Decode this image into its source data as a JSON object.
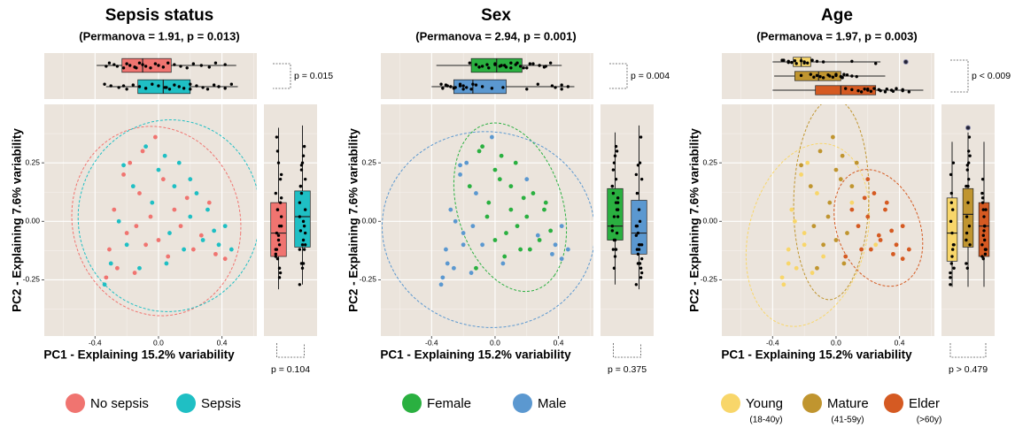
{
  "chart_data": [
    {
      "type": "scatter",
      "title": "Sepsis status",
      "subtitle": "(Permanova = 1.91, p = 0.013)",
      "xlabel": "PC1 - Explaining 15.2% variability",
      "ylabel": "PC2 - Explaining 7.6% variability",
      "xlim": [
        -0.72,
        0.62
      ],
      "ylim": [
        -0.49,
        0.5
      ],
      "xticks": [
        -0.4,
        {
          "value": 0,
          "label": "0.0"
        },
        0.4
      ],
      "yticks": [
        0.25,
        {
          "value": 0,
          "label": "0.00"
        },
        -0.25
      ],
      "pc1_test": "p = 0.015",
      "pc2_test": "p = 0.104",
      "series": [
        {
          "name": "No sepsis",
          "color": "#f07470",
          "x": [
            -0.31,
            -0.28,
            -0.26,
            -0.22,
            -0.2,
            -0.18,
            -0.15,
            -0.12,
            -0.1,
            -0.08,
            -0.05,
            -0.02,
            0.0,
            0.03,
            0.06,
            0.1,
            0.14,
            0.18,
            0.22,
            0.27,
            0.32,
            0.36,
            0.42,
            -0.33,
            -0.14
          ],
          "y": [
            -0.12,
            0.05,
            -0.2,
            0.2,
            -0.05,
            0.25,
            -0.22,
            0.12,
            0.3,
            -0.1,
            0.02,
            0.36,
            -0.08,
            0.18,
            -0.15,
            0.05,
            -0.02,
            0.1,
            -0.12,
            -0.06,
            0.08,
            -0.14,
            -0.16,
            -0.24,
            -0.02
          ],
          "pc1_box": [
            -0.39,
            -0.23,
            -0.1,
            0.08,
            0.49
          ],
          "pc2_box": [
            -0.29,
            -0.15,
            -0.05,
            0.08,
            0.4
          ]
        },
        {
          "name": "Sepsis",
          "color": "#1fbfc4",
          "x": [
            -0.34,
            -0.3,
            -0.25,
            -0.2,
            -0.16,
            -0.12,
            -0.08,
            -0.04,
            0.0,
            0.04,
            0.07,
            0.1,
            0.13,
            0.16,
            0.2,
            0.24,
            0.28,
            0.31,
            0.35,
            0.38,
            0.42,
            0.46,
            -0.22,
            0.05,
            0.2
          ],
          "y": [
            -0.27,
            -0.18,
            0.0,
            -0.1,
            0.15,
            -0.2,
            0.32,
            0.08,
            0.22,
            0.28,
            -0.05,
            0.15,
            0.25,
            -0.12,
            0.02,
            0.12,
            -0.08,
            0.05,
            -0.04,
            -0.1,
            -0.02,
            -0.12,
            0.24,
            -0.18,
            0.18
          ],
          "pc1_box": [
            -0.33,
            -0.13,
            0.03,
            0.2,
            0.5
          ],
          "pc2_box": [
            -0.27,
            -0.11,
            0.02,
            0.13,
            0.41
          ]
        }
      ]
    },
    {
      "type": "scatter",
      "title": "Sex",
      "subtitle": "(Permanova = 2.94, p = 0.001)",
      "xlabel": "PC1 - Explaining 15.2% variability",
      "ylabel": "PC2 - Explaining 7.6% variability",
      "xlim": [
        -0.72,
        0.62
      ],
      "ylim": [
        -0.49,
        0.5
      ],
      "xticks": [
        -0.4,
        {
          "value": 0,
          "label": "0.0"
        },
        0.4
      ],
      "yticks": [
        0.25,
        {
          "value": 0,
          "label": "0.00"
        },
        -0.25
      ],
      "pc1_test": "p = 0.004",
      "pc2_test": "p = 0.375",
      "series": [
        {
          "name": "Female",
          "color": "#2ab040",
          "x": [
            -0.16,
            -0.12,
            -0.08,
            -0.04,
            0.0,
            0.04,
            0.07,
            0.1,
            0.13,
            0.16,
            0.2,
            0.24,
            0.28,
            0.31,
            0.35,
            -0.05,
            0.03,
            0.18,
            0.22,
            0.06,
            -0.1,
            0.14,
            0.0,
            0.32,
            0.1
          ],
          "y": [
            0.15,
            -0.2,
            0.32,
            0.08,
            0.22,
            0.28,
            -0.05,
            0.15,
            0.25,
            -0.12,
            0.02,
            0.12,
            -0.08,
            0.05,
            -0.04,
            0.02,
            0.18,
            0.1,
            -0.12,
            -0.15,
            0.3,
            -0.02,
            -0.08,
            0.08,
            0.05
          ],
          "pc1_box": [
            -0.37,
            -0.15,
            0.01,
            0.17,
            0.42
          ],
          "pc2_box": [
            -0.27,
            -0.08,
            -0.02,
            0.14,
            0.38
          ]
        },
        {
          "name": "Male",
          "color": "#5b98d0",
          "x": [
            -0.34,
            -0.3,
            -0.25,
            -0.2,
            -0.31,
            -0.28,
            -0.26,
            -0.22,
            -0.2,
            -0.18,
            -0.15,
            -0.12,
            -0.08,
            -0.02,
            0.27,
            0.36,
            0.38,
            0.42,
            0.42,
            0.46,
            -0.33,
            -0.14,
            -0.22,
            0.05,
            0.2
          ],
          "y": [
            -0.27,
            -0.18,
            0.0,
            -0.1,
            -0.12,
            0.05,
            -0.2,
            0.2,
            -0.05,
            0.25,
            -0.22,
            0.12,
            -0.1,
            0.36,
            -0.06,
            -0.14,
            -0.1,
            -0.16,
            -0.02,
            -0.12,
            -0.24,
            -0.02,
            0.24,
            -0.18,
            0.18
          ],
          "pc1_box": [
            -0.4,
            -0.26,
            -0.14,
            0.07,
            0.5
          ],
          "pc2_box": [
            -0.29,
            -0.14,
            -0.05,
            0.09,
            0.41
          ]
        }
      ]
    },
    {
      "type": "scatter",
      "title": "Age",
      "subtitle": "(Permanova = 1.97, p = 0.003)",
      "xlabel": "PC1 - Explaining 15.2% variability",
      "ylabel": "PC2 - Explaining 7.6% variability",
      "xlim": [
        -0.72,
        0.62
      ],
      "ylim": [
        -0.49,
        0.5
      ],
      "xticks": [
        -0.4,
        {
          "value": 0,
          "label": "0.0"
        },
        0.4
      ],
      "yticks": [
        0.25,
        {
          "value": 0,
          "label": "0.00"
        },
        -0.25
      ],
      "pc1_test": "p < 0.009",
      "pc2_test": "p > 0.479",
      "series": [
        {
          "name": "Young",
          "age_range": "(18-40y)",
          "color": "#f8d66a",
          "x": [
            -0.33,
            -0.3,
            -0.28,
            -0.25,
            -0.22,
            -0.2,
            -0.18,
            -0.15,
            -0.12,
            -0.3,
            0.25,
            -0.26,
            -0.08,
            -0.2,
            -0.34,
            0.1
          ],
          "y": [
            -0.27,
            -0.18,
            0.05,
            -0.2,
            0.2,
            -0.05,
            0.25,
            -0.22,
            0.12,
            -0.12,
            -0.1,
            0.0,
            -0.15,
            -0.1,
            -0.24,
            0.08
          ],
          "pc1_box": [
            -0.4,
            -0.27,
            -0.22,
            -0.16,
            0.28
          ],
          "pc1_outliers": [
            0.44
          ],
          "pc2_box": [
            -0.28,
            -0.17,
            -0.05,
            0.1,
            0.34
          ]
        },
        {
          "name": "Mature",
          "age_range": "(41-59y)",
          "color": "#c0952f",
          "x": [
            -0.16,
            -0.12,
            -0.1,
            -0.08,
            -0.05,
            -0.04,
            -0.02,
            0.0,
            0.0,
            0.03,
            0.04,
            0.07,
            0.1,
            -0.14,
            0.05,
            -0.22,
            0.13
          ],
          "y": [
            0.15,
            -0.2,
            0.3,
            -0.1,
            0.02,
            0.08,
            0.36,
            -0.08,
            0.22,
            0.18,
            0.28,
            -0.05,
            0.15,
            -0.02,
            -0.18,
            0.24,
            0.25
          ],
          "pc1_box": [
            -0.39,
            -0.26,
            -0.11,
            0.03,
            0.31
          ],
          "pc2_box": [
            -0.28,
            -0.11,
            0.03,
            0.14,
            0.38
          ],
          "pc2_outliers": [
            0.4
          ]
        },
        {
          "name": "Elder",
          "age_range": "(>60y)",
          "color": "#d55a22",
          "x": [
            0.06,
            0.1,
            0.14,
            0.16,
            0.18,
            0.2,
            0.22,
            0.24,
            0.27,
            0.28,
            0.31,
            0.32,
            0.35,
            0.36,
            0.38,
            0.42,
            0.42,
            0.46,
            0.2
          ],
          "y": [
            -0.15,
            0.05,
            -0.02,
            -0.12,
            0.1,
            0.02,
            -0.12,
            0.12,
            -0.06,
            -0.08,
            0.05,
            0.08,
            -0.04,
            -0.14,
            -0.1,
            -0.16,
            -0.02,
            -0.12,
            0.18
          ],
          "pc1_box": [
            -0.4,
            -0.13,
            0.03,
            0.25,
            0.55
          ],
          "pc2_box": [
            -0.28,
            -0.15,
            -0.02,
            0.08,
            0.34
          ]
        }
      ]
    }
  ]
}
